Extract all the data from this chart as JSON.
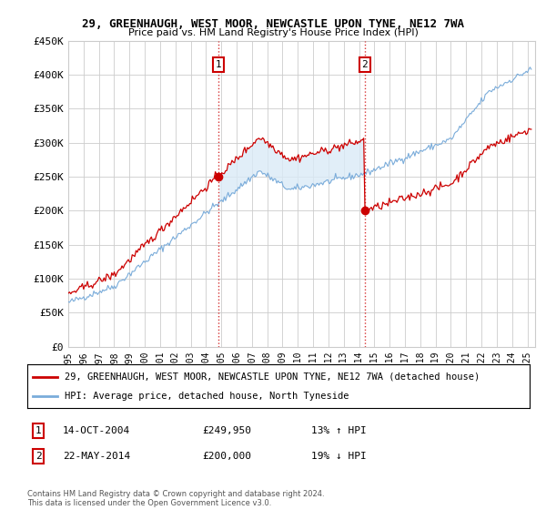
{
  "title1": "29, GREENHAUGH, WEST MOOR, NEWCASTLE UPON TYNE, NE12 7WA",
  "title2": "Price paid vs. HM Land Registry's House Price Index (HPI)",
  "legend_label_red": "29, GREENHAUGH, WEST MOOR, NEWCASTLE UPON TYNE, NE12 7WA (detached house)",
  "legend_label_blue": "HPI: Average price, detached house, North Tyneside",
  "footnote": "Contains HM Land Registry data © Crown copyright and database right 2024.\nThis data is licensed under the Open Government Licence v3.0.",
  "point1_date": "14-OCT-2004",
  "point1_price": 249950,
  "point1_label": "13% ↑ HPI",
  "point2_date": "22-MAY-2014",
  "point2_price": 200000,
  "point2_label": "19% ↓ HPI",
  "red_color": "#cc0000",
  "blue_color": "#7aacda",
  "fill_color": "#daeaf7",
  "grid_color": "#cccccc",
  "background_color": "#ffffff",
  "ylim": [
    0,
    450000
  ],
  "yticks": [
    0,
    50000,
    100000,
    150000,
    200000,
    250000,
    300000,
    350000,
    400000,
    450000
  ],
  "ytick_labels": [
    "£0",
    "£50K",
    "£100K",
    "£150K",
    "£200K",
    "£250K",
    "£300K",
    "£350K",
    "£400K",
    "£450K"
  ],
  "xtick_labels": [
    "1995",
    "1996",
    "1997",
    "1998",
    "1999",
    "2000",
    "2001",
    "2002",
    "2003",
    "2004",
    "2005",
    "2006",
    "2007",
    "2008",
    "2009",
    "2010",
    "2011",
    "2012",
    "2013",
    "2014",
    "2015",
    "2016",
    "2017",
    "2018",
    "2019",
    "2020",
    "2021",
    "2022",
    "2023",
    "2024",
    "2025"
  ]
}
